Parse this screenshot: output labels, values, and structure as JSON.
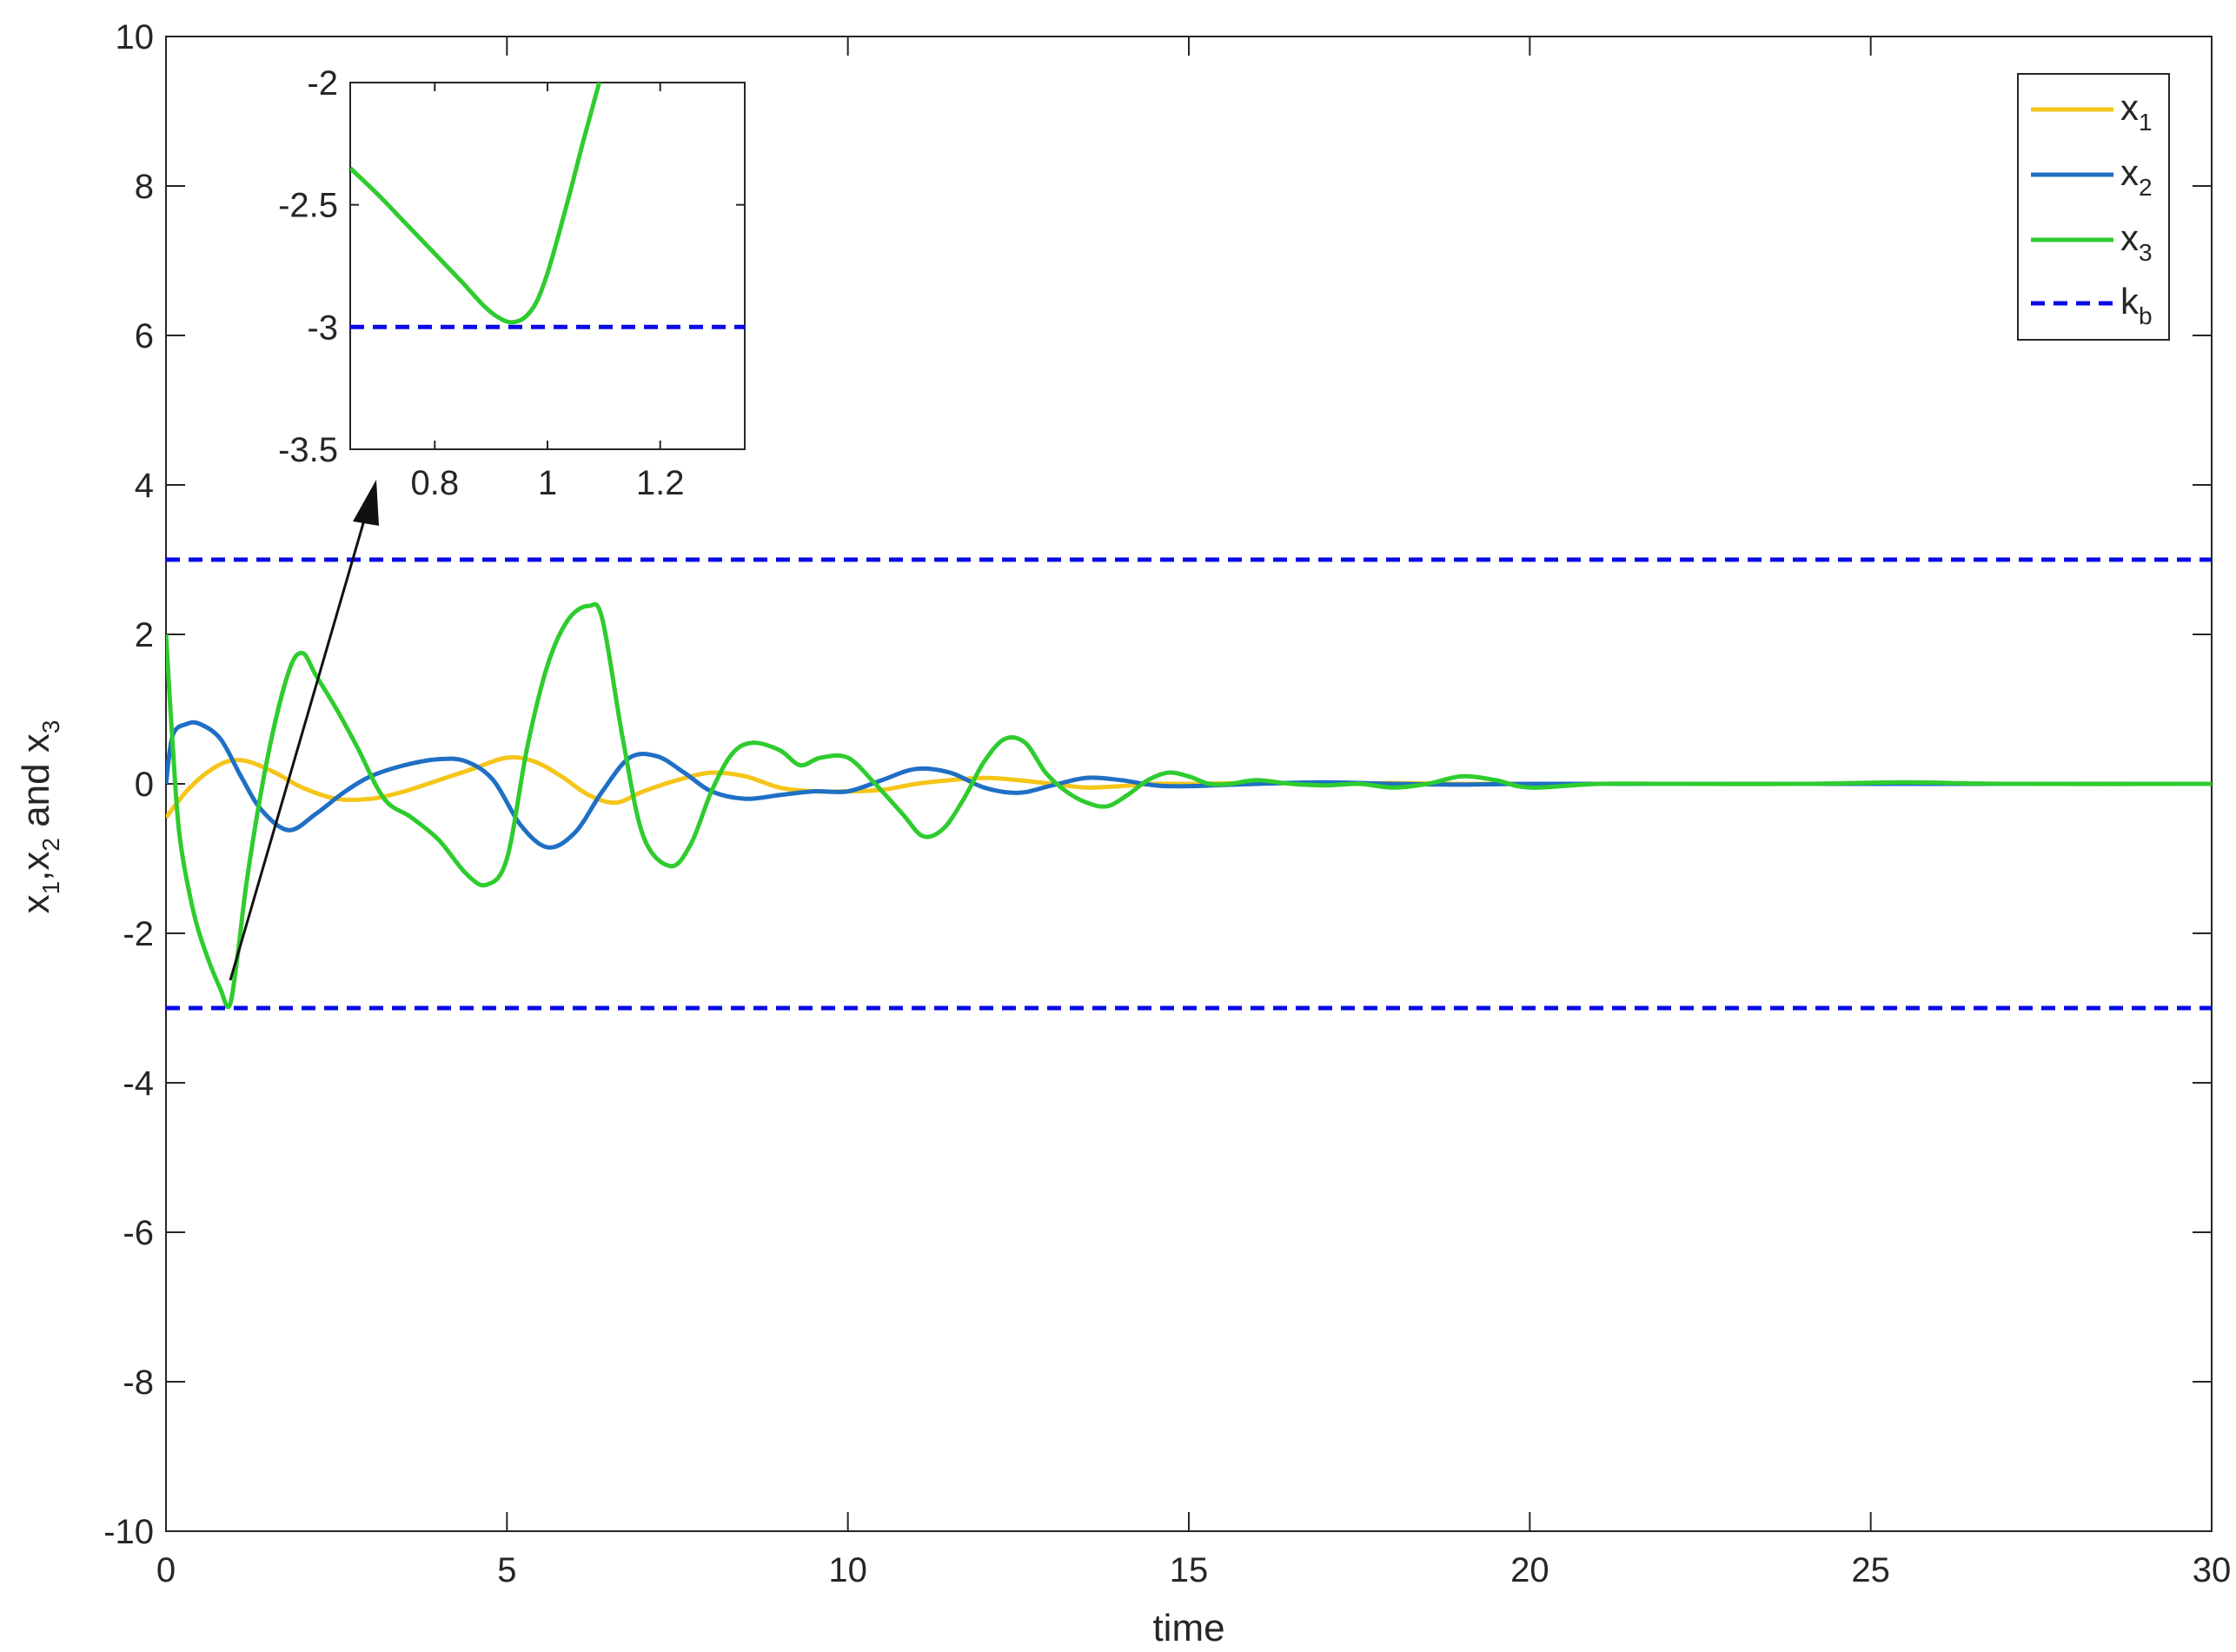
{
  "chart_data": [
    {
      "type": "line",
      "xlabel": "time",
      "ylabel_parts": [
        "x",
        "1",
        ",x",
        "2",
        " and x",
        "3"
      ],
      "xlim": [
        0,
        30
      ],
      "ylim": [
        -10,
        10
      ],
      "xticks": [
        0,
        5,
        10,
        15,
        20,
        25,
        30
      ],
      "xtick_labels": [
        "0",
        "5",
        "10",
        "15",
        "20",
        "25",
        "30"
      ],
      "yticks": [
        -10,
        -8,
        -6,
        -4,
        -2,
        0,
        2,
        4,
        6,
        8,
        10
      ],
      "ytick_labels": [
        "-10",
        "-8",
        "-6",
        "-4",
        "-2",
        "0",
        "2",
        "4",
        "6",
        "8",
        "10"
      ],
      "grid": false,
      "legend_position": "top-right",
      "series": [
        {
          "name": "x1",
          "label_main": "x",
          "label_sub": "1",
          "color": "#F5C518",
          "dash": "solid",
          "x": [
            0,
            0.3,
            0.6,
            0.9,
            1.2,
            1.6,
            2.0,
            2.5,
            3.0,
            3.5,
            4.0,
            4.5,
            5.0,
            5.4,
            5.8,
            6.2,
            6.6,
            7.0,
            7.5,
            8.0,
            8.5,
            9.0,
            9.5,
            10.0,
            10.5,
            11.0,
            11.5,
            12.0,
            12.5,
            13.0,
            13.5,
            14.0,
            14.5,
            15.0,
            16.0,
            17.0,
            18.0,
            19.0,
            20.0,
            22.0,
            25.0,
            30.0
          ],
          "y": [
            -0.45,
            -0.1,
            0.15,
            0.3,
            0.3,
            0.15,
            -0.05,
            -0.2,
            -0.2,
            -0.1,
            0.05,
            0.2,
            0.35,
            0.3,
            0.1,
            -0.15,
            -0.25,
            -0.1,
            0.05,
            0.15,
            0.1,
            -0.05,
            -0.1,
            -0.1,
            -0.08,
            0.0,
            0.05,
            0.08,
            0.05,
            0.0,
            -0.05,
            -0.03,
            0.0,
            0.0,
            0.01,
            0.0,
            0.01,
            0.0,
            0.0,
            0.0,
            0.0,
            0.0
          ]
        },
        {
          "name": "x2",
          "label_main": "x",
          "label_sub": "2",
          "color": "#1F6FC5",
          "dash": "solid",
          "x": [
            0,
            0.1,
            0.3,
            0.5,
            0.8,
            1.1,
            1.4,
            1.8,
            2.2,
            2.6,
            3.0,
            3.5,
            4.0,
            4.4,
            4.8,
            5.2,
            5.6,
            6.0,
            6.4,
            6.8,
            7.2,
            7.6,
            8.0,
            8.5,
            9.0,
            9.5,
            10.0,
            10.5,
            11.0,
            11.5,
            12.0,
            12.5,
            13.0,
            13.5,
            14.0,
            14.5,
            15.0,
            16.0,
            17.0,
            18.0,
            19.0,
            20.0,
            22.0,
            25.0,
            30.0
          ],
          "y": [
            0.0,
            0.65,
            0.8,
            0.8,
            0.6,
            0.1,
            -0.35,
            -0.62,
            -0.4,
            -0.12,
            0.1,
            0.25,
            0.33,
            0.3,
            0.05,
            -0.55,
            -0.85,
            -0.65,
            -0.1,
            0.35,
            0.37,
            0.15,
            -0.1,
            -0.2,
            -0.15,
            -0.1,
            -0.1,
            0.05,
            0.2,
            0.15,
            -0.05,
            -0.12,
            -0.02,
            0.08,
            0.05,
            -0.02,
            -0.03,
            0.0,
            0.02,
            0.0,
            -0.01,
            0.0,
            0.0,
            0.0,
            0.0
          ]
        },
        {
          "name": "x3",
          "label_main": "x",
          "label_sub": "3",
          "color": "#2ECC2E",
          "dash": "solid",
          "x": [
            0,
            0.1,
            0.2,
            0.4,
            0.6,
            0.8,
            0.93,
            1.05,
            1.2,
            1.5,
            1.8,
            2.0,
            2.2,
            2.5,
            2.8,
            3.2,
            3.6,
            4.0,
            4.4,
            4.7,
            5.0,
            5.3,
            5.6,
            5.9,
            6.2,
            6.4,
            6.7,
            7.0,
            7.4,
            7.7,
            8.0,
            8.3,
            8.6,
            9.0,
            9.3,
            9.6,
            10.0,
            10.4,
            10.8,
            11.1,
            11.4,
            11.7,
            12.0,
            12.3,
            12.6,
            12.9,
            13.2,
            13.5,
            13.8,
            14.1,
            14.4,
            14.7,
            15.0,
            15.3,
            15.6,
            16.0,
            16.5,
            17.0,
            17.5,
            18.0,
            18.5,
            19.0,
            19.5,
            20.0,
            21.0,
            22.0,
            24.0,
            25.5,
            27.0,
            30.0
          ],
          "y": [
            2.0,
            0.5,
            -0.7,
            -1.7,
            -2.3,
            -2.75,
            -2.97,
            -2.3,
            -1.2,
            0.4,
            1.5,
            1.75,
            1.45,
            1.0,
            0.5,
            -0.2,
            -0.45,
            -0.75,
            -1.2,
            -1.35,
            -1.0,
            0.5,
            1.6,
            2.2,
            2.38,
            2.2,
            0.6,
            -0.7,
            -1.1,
            -0.8,
            -0.1,
            0.4,
            0.55,
            0.45,
            0.25,
            0.35,
            0.35,
            0.0,
            -0.4,
            -0.7,
            -0.6,
            -0.2,
            0.3,
            0.6,
            0.55,
            0.15,
            -0.1,
            -0.25,
            -0.3,
            -0.15,
            0.05,
            0.15,
            0.1,
            0.0,
            0.0,
            0.05,
            0.0,
            -0.02,
            0.0,
            -0.05,
            0.0,
            0.1,
            0.05,
            -0.05,
            0.0,
            0.0,
            0.0,
            0.02,
            0.0,
            0.0
          ]
        },
        {
          "name": "kb",
          "label_main": "k",
          "label_sub": "b",
          "color": "#0A0AE6",
          "dash": "dashed",
          "segments": [
            {
              "x": [
                0,
                30
              ],
              "y": [
                3,
                3
              ]
            },
            {
              "x": [
                0,
                30
              ],
              "y": [
                -3,
                -3
              ]
            }
          ]
        }
      ]
    },
    {
      "type": "line",
      "role": "inset",
      "xlim": [
        0.65,
        1.35
      ],
      "ylim": [
        -3.5,
        -2
      ],
      "xticks": [
        0.8,
        1.0,
        1.2
      ],
      "xtick_labels": [
        "0.8",
        "1",
        "1.2"
      ],
      "yticks": [
        -3.5,
        -3,
        -2.5,
        -2
      ],
      "ytick_labels": [
        "-3.5",
        "-3",
        "-2.5",
        "-2"
      ],
      "series": [
        {
          "name": "x3",
          "color": "#2ECC2E",
          "dash": "solid",
          "x": [
            0.65,
            0.7,
            0.75,
            0.8,
            0.85,
            0.89,
            0.92,
            0.94,
            0.96,
            0.98,
            1.0,
            1.02,
            1.04,
            1.06,
            1.08,
            1.1
          ],
          "y": [
            -2.35,
            -2.46,
            -2.58,
            -2.7,
            -2.82,
            -2.92,
            -2.97,
            -2.98,
            -2.96,
            -2.9,
            -2.78,
            -2.62,
            -2.45,
            -2.27,
            -2.1,
            -1.93
          ]
        },
        {
          "name": "kb",
          "color": "#0A0AE6",
          "dash": "dashed",
          "x": [
            0.65,
            1.35
          ],
          "y": [
            -3,
            -3
          ]
        }
      ]
    }
  ]
}
